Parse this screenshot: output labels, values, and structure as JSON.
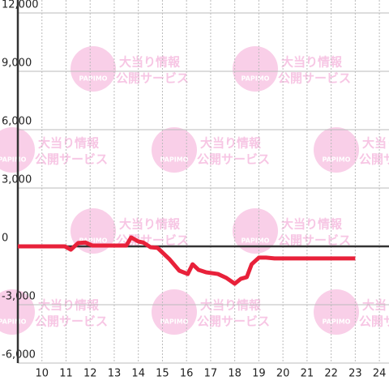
{
  "chart_data": {
    "type": "line",
    "x": [
      9,
      10.95,
      11.2,
      11.5,
      11.8,
      12.1,
      13.5,
      13.7,
      14.0,
      14.2,
      14.5,
      14.8,
      15.3,
      15.7,
      16.05,
      16.25,
      16.5,
      16.8,
      17.3,
      17.65,
      18.0,
      18.25,
      18.5,
      18.7,
      19.0,
      19.3,
      19.65,
      23.0
    ],
    "series": [
      {
        "color": "#e8213a",
        "values": [
          0,
          0,
          -170,
          170,
          200,
          40,
          40,
          460,
          250,
          200,
          -40,
          -80,
          -670,
          -1250,
          -1420,
          -920,
          -1210,
          -1330,
          -1420,
          -1620,
          -1920,
          -1670,
          -1580,
          -920,
          -580,
          -580,
          -620,
          -620
        ]
      }
    ],
    "xlim": [
      9,
      24.4
    ],
    "xticks": [
      10,
      11,
      12,
      13,
      14,
      15,
      16,
      17,
      18,
      19,
      20,
      21,
      22,
      23,
      24
    ],
    "ylim": [
      -6000,
      12000
    ],
    "yticks": [
      {
        "value": 12000,
        "label": "12,000"
      },
      {
        "value": 9000,
        "label": "9,000"
      },
      {
        "value": 6000,
        "label": "6,000"
      },
      {
        "value": 3000,
        "label": "3,000"
      },
      0,
      {
        "value": -3000,
        "label": "-3,000"
      },
      {
        "value": -6000,
        "label": "-6,000"
      }
    ],
    "grid": true
  },
  "watermark": {
    "logo": "PAPIMO",
    "line1": "大当り情報",
    "line2": "公開サービス"
  }
}
